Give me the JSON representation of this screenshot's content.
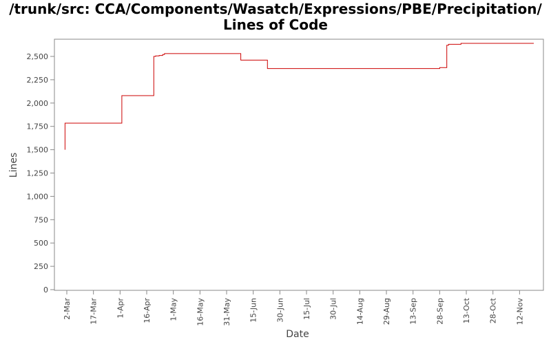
{
  "chart_data": {
    "type": "line",
    "title_line1": "/trunk/src: CCA/Components/Wasatch/Expressions/PBE/Precipitation/",
    "title_line2": "Lines of Code",
    "xlabel": "Date",
    "ylabel": "Lines",
    "x_ticks": [
      "2-Mar",
      "17-Mar",
      "1-Apr",
      "16-Apr",
      "1-May",
      "16-May",
      "31-May",
      "15-Jun",
      "30-Jun",
      "15-Jul",
      "30-Jul",
      "14-Aug",
      "29-Aug",
      "13-Sep",
      "28-Sep",
      "13-Oct",
      "28-Oct",
      "12-Nov"
    ],
    "y_ticks": [
      "0",
      "250",
      "500",
      "750",
      "1,000",
      "1,250",
      "1,500",
      "1,750",
      "2,000",
      "2,250",
      "2,500"
    ],
    "y_tick_values": [
      0,
      250,
      500,
      750,
      1000,
      1250,
      1500,
      1750,
      2000,
      2250,
      2500
    ],
    "ylim": [
      0,
      2700
    ],
    "xlim": [
      "2-Mar-2012",
      "20-Nov-2012"
    ],
    "grid": false,
    "line_color": "#cc0000",
    "series": [
      {
        "step": true,
        "x": [
          "1-Mar-2012",
          "1-Mar-2012",
          "2-Apr-2012",
          "20-Apr-2012",
          "21-Apr-2012",
          "23-Apr-2012",
          "25-Apr-2012",
          "26-Apr-2012",
          "8-Jun-2012",
          "23-Jun-2012",
          "28-Sep-2012",
          "2-Oct-2012",
          "3-Oct-2012",
          "10-Oct-2012",
          "20-Nov-2012"
        ],
        "y": [
          1500,
          1785,
          2080,
          2500,
          2505,
          2510,
          2520,
          2530,
          2460,
          2370,
          2380,
          2620,
          2630,
          2640,
          2640
        ]
      }
    ]
  }
}
